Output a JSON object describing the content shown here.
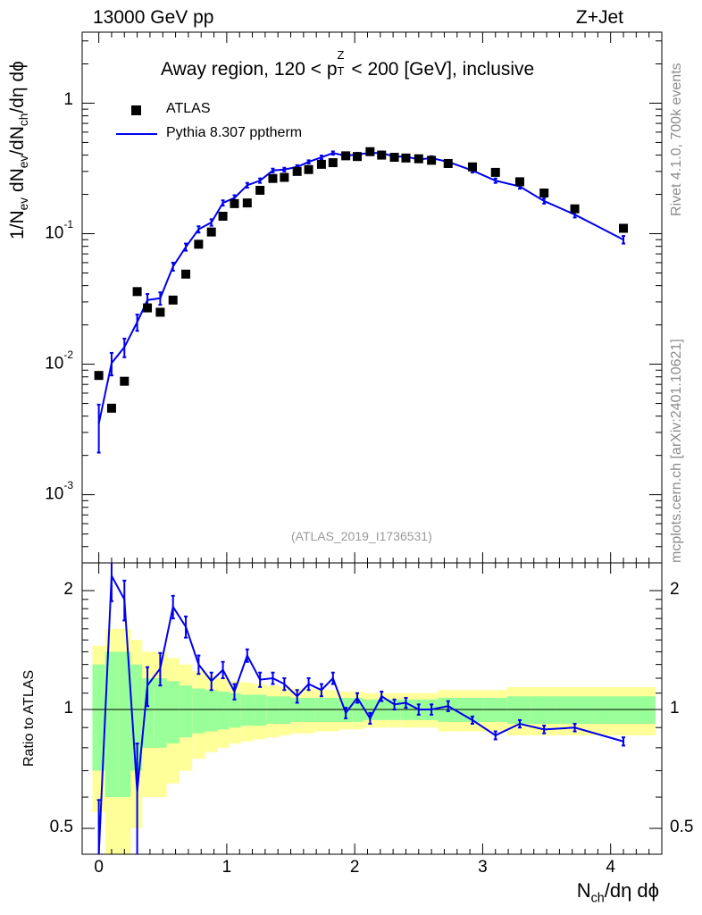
{
  "header": {
    "energy_label": "13000 GeV pp",
    "process_label": "Z+Jet"
  },
  "side_labels": {
    "rivet": "Rivet 4.1.0,  700k events",
    "mcplots": "mcplots.cern.ch [arXiv:2401.10621]"
  },
  "chart_data": {
    "type": "scatter",
    "title": "Away region, 120 < pTZ < 200 [GeV], inclusive",
    "title_parts": {
      "pre": "Away region, 120 < p",
      "sup": "Z",
      "sub": "T",
      "post": " < 200 [GeV], inclusive"
    },
    "xlabel": "Nch/dη dϕ",
    "xlabel_parts": {
      "a": "N",
      "sub": "ch",
      "b": "/dη dϕ"
    },
    "ylabel": "1/Nev dNev/dNch/dη dϕ",
    "ylabel_parts": {
      "a": "1/N",
      "sub1": "ev",
      "b": " dN",
      "sub2": "ev",
      "c": "/dN",
      "sub3": "ch",
      "d": "/dη dϕ"
    },
    "ratio_ylabel": "Ratio to ATLAS",
    "reference": "(ATLAS_2019_I1736531)",
    "xlim": [
      -0.13,
      4.4
    ],
    "ylim": [
      0.0003,
      3.5
    ],
    "yscale": "log",
    "ratio_ylim": [
      0.43,
      2.35
    ],
    "x_ticks": [
      "0",
      "1",
      "2",
      "3",
      "4"
    ],
    "y_ticks": [
      {
        "base": "10",
        "exp": "-3"
      },
      {
        "base": "10",
        "exp": "-2"
      },
      {
        "base": "10",
        "exp": "-1"
      },
      {
        "base": "1",
        "exp": ""
      }
    ],
    "ratio_ticks": [
      "0.5",
      "1",
      "2"
    ],
    "legend": {
      "position": "top-left",
      "entries": [
        "ATLAS",
        "Pythia 8.307 pptherm"
      ]
    },
    "series": [
      {
        "name": "ATLAS",
        "style": "markers",
        "color": "#000000",
        "x": [
          0.0,
          0.1,
          0.2,
          0.3,
          0.38,
          0.48,
          0.58,
          0.68,
          0.78,
          0.88,
          0.97,
          1.06,
          1.16,
          1.26,
          1.36,
          1.45,
          1.55,
          1.64,
          1.74,
          1.83,
          1.93,
          2.02,
          2.12,
          2.21,
          2.31,
          2.4,
          2.5,
          2.6,
          2.73,
          2.92,
          3.1,
          3.29,
          3.48,
          3.72,
          4.1
        ],
        "y": [
          0.0082,
          0.0046,
          0.0074,
          0.036,
          0.027,
          0.025,
          0.031,
          0.049,
          0.083,
          0.103,
          0.136,
          0.17,
          0.172,
          0.215,
          0.265,
          0.27,
          0.3,
          0.31,
          0.34,
          0.35,
          0.395,
          0.39,
          0.425,
          0.4,
          0.385,
          0.38,
          0.375,
          0.365,
          0.345,
          0.325,
          0.295,
          0.25,
          0.205,
          0.155,
          0.11
        ]
      },
      {
        "name": "Pythia 8.307 pptherm",
        "style": "line",
        "color": "#0000ee",
        "x": [
          0.0,
          0.1,
          0.2,
          0.3,
          0.38,
          0.48,
          0.58,
          0.68,
          0.78,
          0.88,
          0.97,
          1.06,
          1.16,
          1.26,
          1.36,
          1.45,
          1.55,
          1.64,
          1.74,
          1.83,
          1.93,
          2.02,
          2.12,
          2.21,
          2.31,
          2.4,
          2.5,
          2.6,
          2.73,
          2.92,
          3.1,
          3.29,
          3.48,
          3.72,
          4.1
        ],
        "y": [
          0.0035,
          0.0102,
          0.0135,
          0.021,
          0.031,
          0.032,
          0.056,
          0.079,
          0.108,
          0.122,
          0.172,
          0.188,
          0.235,
          0.255,
          0.305,
          0.31,
          0.325,
          0.355,
          0.385,
          0.415,
          0.395,
          0.405,
          0.415,
          0.415,
          0.39,
          0.39,
          0.37,
          0.38,
          0.355,
          0.305,
          0.255,
          0.23,
          0.178,
          0.14,
          0.09
        ],
        "err": [
          0.0014,
          0.002,
          0.0022,
          0.003,
          0.0035,
          0.0035,
          0.004,
          0.005,
          0.006,
          0.007,
          0.008,
          0.009,
          0.01,
          0.01,
          0.01,
          0.01,
          0.01,
          0.01,
          0.012,
          0.012,
          0.012,
          0.012,
          0.012,
          0.012,
          0.012,
          0.012,
          0.012,
          0.012,
          0.012,
          0.011,
          0.01,
          0.009,
          0.008,
          0.007,
          0.006
        ]
      }
    ],
    "ratio": {
      "x": [
        0.0,
        0.1,
        0.2,
        0.3,
        0.38,
        0.48,
        0.58,
        0.68,
        0.78,
        0.88,
        0.97,
        1.06,
        1.16,
        1.26,
        1.36,
        1.45,
        1.55,
        1.64,
        1.74,
        1.83,
        1.93,
        2.02,
        2.12,
        2.21,
        2.31,
        2.4,
        2.5,
        2.6,
        2.73,
        2.92,
        3.1,
        3.29,
        3.48,
        3.72,
        4.1
      ],
      "y": [
        0.43,
        2.18,
        1.9,
        0.62,
        1.15,
        1.27,
        1.82,
        1.62,
        1.3,
        1.18,
        1.26,
        1.11,
        1.37,
        1.19,
        1.2,
        1.16,
        1.08,
        1.16,
        1.12,
        1.2,
        0.98,
        1.07,
        0.95,
        1.08,
        1.03,
        1.04,
        1.0,
        1.0,
        1.02,
        0.94,
        0.86,
        0.92,
        0.89,
        0.9,
        0.83
      ],
      "err": [
        0.16,
        0.3,
        0.22,
        0.2,
        0.13,
        0.12,
        0.12,
        0.1,
        0.07,
        0.06,
        0.06,
        0.05,
        0.05,
        0.05,
        0.04,
        0.04,
        0.04,
        0.04,
        0.04,
        0.04,
        0.03,
        0.03,
        0.03,
        0.03,
        0.03,
        0.03,
        0.03,
        0.03,
        0.03,
        0.02,
        0.02,
        0.02,
        0.02,
        0.02,
        0.02
      ],
      "band_edges": [
        -0.05,
        0.05,
        0.15,
        0.25,
        0.34,
        0.43,
        0.53,
        0.63,
        0.73,
        0.83,
        0.93,
        1.02,
        1.11,
        1.21,
        1.31,
        1.41,
        1.5,
        1.6,
        1.69,
        1.79,
        1.88,
        1.98,
        2.07,
        2.17,
        2.26,
        2.36,
        2.45,
        2.55,
        2.65,
        2.82,
        3.01,
        3.19,
        3.38,
        3.57,
        3.87,
        4.35
      ],
      "band_yellow_rel": [
        0.45,
        0.6,
        0.6,
        0.5,
        0.4,
        0.4,
        0.35,
        0.3,
        0.25,
        0.22,
        0.2,
        0.18,
        0.17,
        0.16,
        0.15,
        0.14,
        0.13,
        0.13,
        0.12,
        0.12,
        0.11,
        0.11,
        0.1,
        0.1,
        0.1,
        0.1,
        0.1,
        0.1,
        0.12,
        0.12,
        0.12,
        0.14,
        0.14,
        0.14,
        0.14
      ],
      "band_green_rel": [
        0.3,
        0.4,
        0.4,
        0.3,
        0.2,
        0.2,
        0.18,
        0.15,
        0.13,
        0.12,
        0.11,
        0.1,
        0.09,
        0.09,
        0.08,
        0.08,
        0.07,
        0.07,
        0.07,
        0.07,
        0.07,
        0.07,
        0.06,
        0.06,
        0.06,
        0.06,
        0.06,
        0.06,
        0.07,
        0.07,
        0.07,
        0.08,
        0.08,
        0.08,
        0.08
      ]
    },
    "band_colors": {
      "yellow": "#ffff99",
      "green": "#99ff99"
    }
  }
}
